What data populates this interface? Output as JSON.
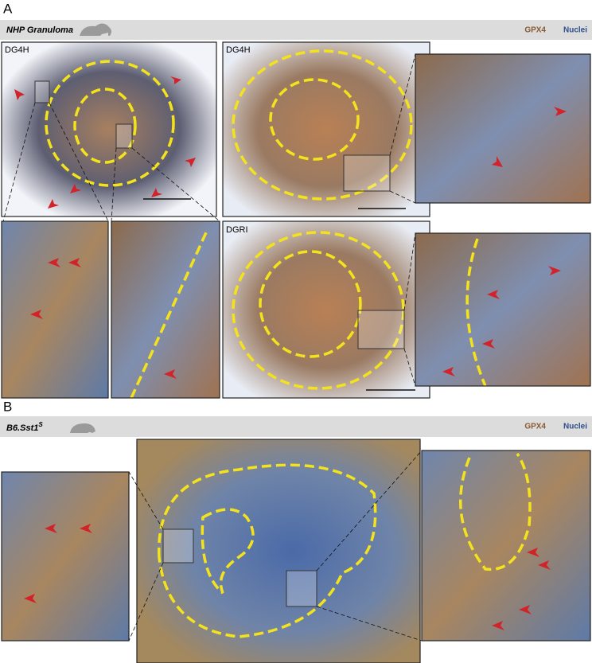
{
  "panel_a": {
    "label": "A",
    "title": "NHP Granuloma",
    "legend": {
      "stain": "GPX4",
      "counterstain": "Nuclei"
    },
    "images": [
      {
        "label": "DG4H"
      },
      {
        "label": "DG4H"
      },
      {
        "label": "DGRI"
      }
    ]
  },
  "panel_b": {
    "label": "B",
    "title": "B6.Sst1",
    "title_superscript": "S",
    "legend": {
      "stain": "GPX4",
      "counterstain": "Nuclei"
    }
  }
}
